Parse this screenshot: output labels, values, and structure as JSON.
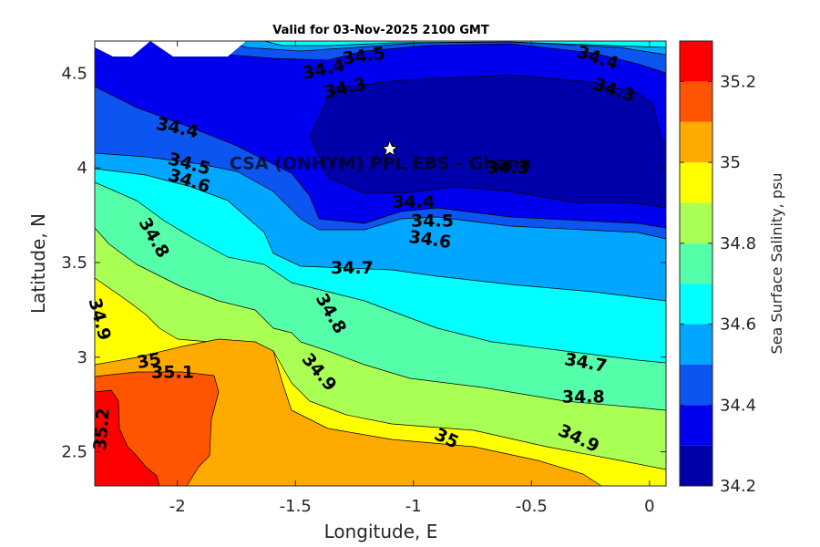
{
  "figure": {
    "title": "Valid for 03-Nov-2025 2100 GMT",
    "site_label": "CSA (ONHYM) PPL EBS - Ghana",
    "site_marker": {
      "lon": -1.1,
      "lat": 4.1,
      "icon": "star-icon"
    }
  },
  "chart_data": {
    "type": "contour",
    "title": "Valid for 03-Nov-2025 2100 GMT",
    "xlabel": "Longitude, E",
    "ylabel": "Latitude, N",
    "xlim": [
      -2.35,
      0.07
    ],
    "ylim": [
      2.32,
      4.67
    ],
    "xticks": [
      -2,
      -1.5,
      -1,
      -0.5,
      0
    ],
    "xtick_labels": [
      "-2",
      "-1.5",
      "-1",
      "-0.5",
      "0"
    ],
    "yticks": [
      2.5,
      3,
      3.5,
      4,
      4.5
    ],
    "ytick_labels": [
      "2.5",
      "3",
      "3.5",
      "4",
      "4.5"
    ],
    "colorbar": {
      "label": "Sea Surface Salinity, psu",
      "range": [
        34.2,
        35.3
      ],
      "ticks": [
        34.2,
        34.4,
        34.6,
        34.8,
        35,
        35.2
      ],
      "tick_labels": [
        "34.2",
        "34.4",
        "34.6",
        "34.8",
        "35",
        "35.2"
      ],
      "levels": [
        {
          "from": 34.2,
          "to": 34.3,
          "color": "#0000aa"
        },
        {
          "from": 34.3,
          "to": 34.4,
          "color": "#0000ee"
        },
        {
          "from": 34.4,
          "to": 34.5,
          "color": "#0d55f0"
        },
        {
          "from": 34.5,
          "to": 34.6,
          "color": "#00a6ff"
        },
        {
          "from": 34.6,
          "to": 34.7,
          "color": "#00ffff"
        },
        {
          "from": 34.7,
          "to": 34.8,
          "color": "#55ffaa"
        },
        {
          "from": 34.8,
          "to": 34.9,
          "color": "#aaff55"
        },
        {
          "from": 34.9,
          "to": 35.0,
          "color": "#ffff00"
        },
        {
          "from": 35.0,
          "to": 35.1,
          "color": "#ffaa00"
        },
        {
          "from": 35.1,
          "to": 35.2,
          "color": "#ff5500"
        },
        {
          "from": 35.2,
          "to": 35.3,
          "color": "#ff0000"
        }
      ]
    },
    "contour_labels": [
      {
        "text": "34.5",
        "lon": -1.21,
        "lat": 4.59,
        "angle": -8
      },
      {
        "text": "34.4",
        "lon": -1.38,
        "lat": 4.52,
        "angle": -12
      },
      {
        "text": "34.3",
        "lon": -1.29,
        "lat": 4.42,
        "angle": -12
      },
      {
        "text": "34.4",
        "lon": -0.22,
        "lat": 4.58,
        "angle": 18
      },
      {
        "text": "34.3",
        "lon": -0.15,
        "lat": 4.41,
        "angle": 18
      },
      {
        "text": "34.4",
        "lon": -2.0,
        "lat": 4.21,
        "angle": 12
      },
      {
        "text": "34.5",
        "lon": -1.95,
        "lat": 4.02,
        "angle": 15
      },
      {
        "text": "34.6",
        "lon": -1.95,
        "lat": 3.93,
        "angle": 18
      },
      {
        "text": "34.3",
        "lon": -0.6,
        "lat": 4.0,
        "angle": 0
      },
      {
        "text": "34.4",
        "lon": -1.0,
        "lat": 3.82,
        "angle": 0
      },
      {
        "text": "34.5",
        "lon": -0.92,
        "lat": 3.72,
        "angle": 0
      },
      {
        "text": "34.6",
        "lon": -0.93,
        "lat": 3.62,
        "angle": 8
      },
      {
        "text": "34.8",
        "lon": -2.1,
        "lat": 3.63,
        "angle": 60
      },
      {
        "text": "34.7",
        "lon": -1.26,
        "lat": 3.47,
        "angle": 0
      },
      {
        "text": "34.9",
        "lon": -2.33,
        "lat": 3.2,
        "angle": 75
      },
      {
        "text": "34.8",
        "lon": -1.35,
        "lat": 3.23,
        "angle": 60
      },
      {
        "text": "35",
        "lon": -2.12,
        "lat": 2.98,
        "angle": -10
      },
      {
        "text": "35.1",
        "lon": -2.02,
        "lat": 2.92,
        "angle": 0
      },
      {
        "text": "34.9",
        "lon": -1.4,
        "lat": 2.92,
        "angle": 50
      },
      {
        "text": "34.7",
        "lon": -0.27,
        "lat": 2.97,
        "angle": 10
      },
      {
        "text": "34.8",
        "lon": -0.28,
        "lat": 2.79,
        "angle": 0
      },
      {
        "text": "35.2",
        "lon": -2.32,
        "lat": 2.62,
        "angle": -85
      },
      {
        "text": "35",
        "lon": -0.86,
        "lat": 2.57,
        "angle": 25
      },
      {
        "text": "34.9",
        "lon": -0.3,
        "lat": 2.57,
        "angle": 25
      }
    ]
  }
}
